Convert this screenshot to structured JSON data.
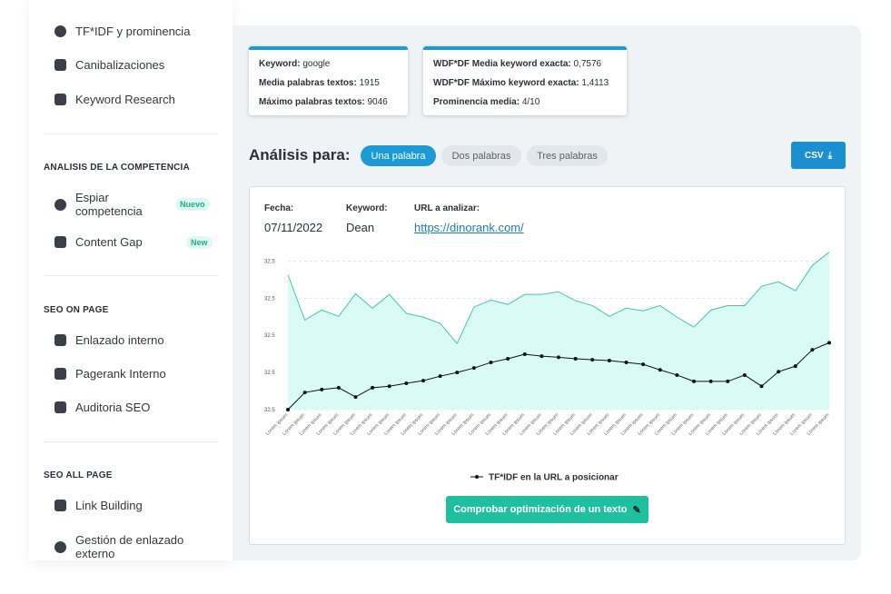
{
  "sidebar": {
    "top_items": [
      "TF*IDF y prominencia",
      "Canibalizaciones",
      "Keyword Research"
    ],
    "sections": [
      {
        "title": "ANALISIS DE LA COMPETENCIA",
        "items": [
          {
            "label": "Espiar competencia",
            "badge": "Nuevo"
          },
          {
            "label": "Content Gap",
            "badge": "New"
          }
        ]
      },
      {
        "title": "SEO ON PAGE",
        "items": [
          {
            "label": "Enlazado interno"
          },
          {
            "label": "Pagerank Interno"
          },
          {
            "label": "Auditoria SEO"
          }
        ]
      },
      {
        "title": "SEO ALL PAGE",
        "items": [
          {
            "label": "Link Building"
          },
          {
            "label": "Gestión de enlazado externo"
          }
        ]
      }
    ]
  },
  "info_boxes": [
    [
      {
        "label": "Keyword:",
        "value": "google"
      },
      {
        "label": "Media palabras textos:",
        "value": "1915"
      },
      {
        "label": "Máximo palabras textos:",
        "value": "9046"
      }
    ],
    [
      {
        "label": "WDF*DF Media keyword exacta:",
        "value": "0,7576"
      },
      {
        "label": "WDF*DF Máximo keyword exacta:",
        "value": "1,4113"
      },
      {
        "label": "Prominencia media:",
        "value": "4/10"
      }
    ]
  ],
  "analysis": {
    "title": "Análisis para:",
    "tabs": [
      "Una palabra",
      "Dos palabras",
      "Tres palabras"
    ],
    "csv_button": "CSV"
  },
  "meta": [
    {
      "label": "Fecha:",
      "value": "07/11/2022"
    },
    {
      "label": "Keyword:",
      "value": "Dean"
    },
    {
      "label": "URL a analizar:",
      "value": "https://dinorank.com/"
    }
  ],
  "chart_data": {
    "type": "line",
    "categories": [
      "Lorem ipsum",
      "Lorem ipsum",
      "Lorem ipsum",
      "Lorem ipsum",
      "Lorem ipsum",
      "Lorem ipsum",
      "Lorem ipsum",
      "Lorem ipsum",
      "Lorem ipsum",
      "Lorem ipsum",
      "Lorem ipsum",
      "Lorem ipsum",
      "Lorem ipsum",
      "Lorem ipsum",
      "Lorem ipsum",
      "Lorem ipsum",
      "Lorem ipsum",
      "Lorem ipsum",
      "Lorem ipsum",
      "Lorem ipsum",
      "Lorem ipsum",
      "Lorem ipsum",
      "Lorem ipsum",
      "Lorem ipsum",
      "Lorem ipsum",
      "Lorem ipsum",
      "Lorem ipsum",
      "Lorem ipsum",
      "Lorem ipsum",
      "Lorem ipsum",
      "Lorem ipsum",
      "Lorem ipsum",
      "Lorem ipsum"
    ],
    "series": [
      {
        "color": "#3fc9ae",
        "fill": "#d9faf5",
        "area": true,
        "values": [
          3.63,
          2.41,
          2.68,
          2.51,
          3.12,
          2.73,
          3.1,
          2.59,
          2.49,
          2.32,
          1.78,
          2.76,
          2.95,
          2.83,
          3.1,
          3.1,
          3.17,
          2.93,
          2.8,
          2.51,
          2.73,
          2.66,
          2.8,
          2.49,
          2.22,
          2.68,
          2.8,
          2.8,
          3.32,
          3.44,
          3.2,
          3.88,
          4.24
        ]
      },
      {
        "name": "TF*IDF en la URL a posicionar",
        "color": "#111111",
        "values": [
          0,
          0.46,
          0.54,
          0.59,
          0.34,
          0.59,
          0.63,
          0.71,
          0.78,
          0.9,
          1.0,
          1.12,
          1.27,
          1.37,
          1.49,
          1.44,
          1.41,
          1.37,
          1.34,
          1.32,
          1.27,
          1.22,
          1.07,
          0.93,
          0.76,
          0.76,
          0.76,
          0.93,
          0.63,
          1.02,
          1.17,
          1.61,
          1.8
        ]
      }
    ],
    "ylim": [
      0,
      4.4
    ],
    "yticks": [
      {
        "value": 0,
        "label": "32.5"
      },
      {
        "value": 1,
        "label": "32.5"
      },
      {
        "value": 2,
        "label": "32.5"
      },
      {
        "value": 3,
        "label": "32.5"
      },
      {
        "value": 4,
        "label": "32.5"
      }
    ],
    "grid": true
  },
  "check_button": "Comprobar optimización de un texto"
}
